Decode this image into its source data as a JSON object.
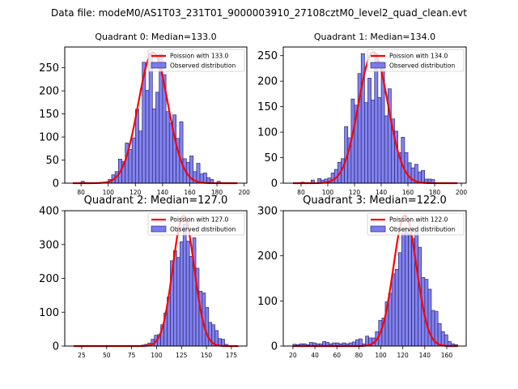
{
  "figure": {
    "suptitle": "Data file: modeM0/AS1T03_231T01_9000003910_27108cztM0_level2_quad_clean.evt"
  },
  "colors": {
    "bar_fill": "#7b7bf0",
    "bar_edge": "#2a2a6a",
    "poisson_line": "#ff0000",
    "frame": "#000000"
  },
  "chart_data": [
    {
      "type": "bar",
      "title": "Quadrant 0: Median=133.0",
      "median": 133.0,
      "xlim": [
        68,
        202
      ],
      "ylim": [
        0,
        295
      ],
      "xticks": [
        80,
        100,
        120,
        140,
        160,
        180,
        200
      ],
      "yticks": [
        0,
        50,
        100,
        150,
        200,
        250
      ],
      "bin_width": 2.5,
      "bins": [
        80,
        100,
        102.5,
        105,
        107.5,
        110,
        112.5,
        115,
        117.5,
        120,
        122.5,
        125,
        127.5,
        130,
        132.5,
        135,
        137.5,
        140,
        142.5,
        145,
        147.5,
        150,
        152.5,
        155,
        157.5,
        160,
        162.5,
        165,
        167.5,
        170,
        172.5,
        175,
        180
      ],
      "values": [
        4,
        8,
        18,
        25,
        52,
        47,
        87,
        73,
        98,
        160,
        113,
        262,
        201,
        281,
        161,
        197,
        280,
        235,
        155,
        130,
        148,
        97,
        133,
        53,
        45,
        59,
        25,
        43,
        20,
        22,
        12,
        8,
        4
      ],
      "legend": {
        "line_label": "Poission with 133.0",
        "bar_label": "Observed distribution",
        "placement": "upper right"
      },
      "poisson_peak": 283
    },
    {
      "type": "bar",
      "title": "Quadrant 1: Median=134.0",
      "median": 134.0,
      "xlim": [
        66.7,
        203.6
      ],
      "ylim": [
        0,
        267
      ],
      "xticks": [
        80,
        100,
        120,
        140,
        160,
        180,
        200
      ],
      "yticks": [
        0,
        50,
        100,
        150,
        200,
        250
      ],
      "bin_width": 2.5,
      "bins": [
        80,
        87.5,
        92.5,
        95,
        97.5,
        100,
        102.5,
        105,
        107.5,
        110,
        112.5,
        115,
        117.5,
        120,
        122.5,
        125,
        127.5,
        130,
        132.5,
        135,
        137.5,
        140,
        142.5,
        145,
        147.5,
        150,
        152.5,
        155,
        157.5,
        160,
        162.5,
        165,
        167.5,
        170,
        172.5,
        175,
        177.5
      ],
      "values": [
        2,
        6,
        9,
        6,
        8,
        10,
        20,
        27,
        41,
        48,
        111,
        89,
        165,
        153,
        215,
        254,
        158,
        206,
        163,
        254,
        168,
        223,
        132,
        185,
        126,
        102,
        60,
        90,
        60,
        40,
        30,
        37,
        22,
        25,
        8,
        8,
        7
      ],
      "legend": {
        "line_label": "Poission with 134.0",
        "bar_label": "Observed distribution",
        "placement": "upper right"
      },
      "poisson_peak": 257
    },
    {
      "type": "bar",
      "title": "Quadrant 2: Median=127.0",
      "median": 127.0,
      "xlim": [
        8,
        190.5
      ],
      "ylim": [
        0,
        400
      ],
      "xticks": [
        25,
        50,
        75,
        100,
        125,
        150,
        175
      ],
      "yticks": [
        0,
        100,
        200,
        300,
        400
      ],
      "bin_width": 3.2,
      "bins": [
        85,
        88.2,
        91.4,
        94.6,
        97.8,
        101,
        104.2,
        107.4,
        110.6,
        113.8,
        117,
        120.2,
        123.4,
        126.6,
        129.8,
        133,
        136.2,
        139.4,
        142.6,
        145.8,
        149,
        152.2,
        155.4,
        158.6,
        161.8,
        165,
        168.2
      ],
      "values": [
        3,
        5,
        9,
        20,
        32,
        34,
        63,
        98,
        145,
        252,
        282,
        262,
        308,
        360,
        310,
        265,
        320,
        230,
        162,
        157,
        114,
        70,
        63,
        46,
        22,
        20,
        5
      ],
      "legend": {
        "line_label": "Poission with 127.0",
        "bar_label": "Observed distribution",
        "placement": "upper right"
      },
      "poisson_peak": 385
    },
    {
      "type": "bar",
      "title": "Quadrant 3: Median=122.0",
      "median": 122.0,
      "xlim": [
        11.2,
        177.7
      ],
      "ylim": [
        0,
        300
      ],
      "xticks": [
        20,
        40,
        60,
        80,
        100,
        120,
        140,
        160
      ],
      "yticks": [
        0,
        100,
        200,
        300
      ],
      "bin_width": 3,
      "bins": [
        20,
        23,
        26,
        29,
        32,
        35,
        38,
        41,
        44,
        47,
        50,
        53,
        56,
        59,
        62,
        65,
        68,
        71,
        74,
        77,
        80,
        83,
        86,
        89,
        92,
        95,
        98,
        101,
        104,
        107,
        110,
        113,
        116,
        119,
        122,
        125,
        128,
        131,
        134,
        137,
        140,
        143,
        146,
        149,
        152,
        155,
        158,
        161,
        164,
        167
      ],
      "values": [
        4,
        3,
        5,
        5,
        3,
        8,
        7,
        5,
        5,
        10,
        8,
        5,
        7,
        7,
        5,
        7,
        5,
        7,
        9,
        14,
        16,
        5,
        22,
        18,
        18,
        32,
        57,
        62,
        98,
        117,
        160,
        170,
        207,
        250,
        260,
        248,
        238,
        254,
        219,
        152,
        148,
        126,
        79,
        77,
        50,
        32,
        25,
        10,
        5,
        3
      ],
      "legend": {
        "line_label": "Poission with 122.0",
        "bar_label": "Observed distribution",
        "placement": "upper right"
      },
      "poisson_peak": 290
    }
  ]
}
